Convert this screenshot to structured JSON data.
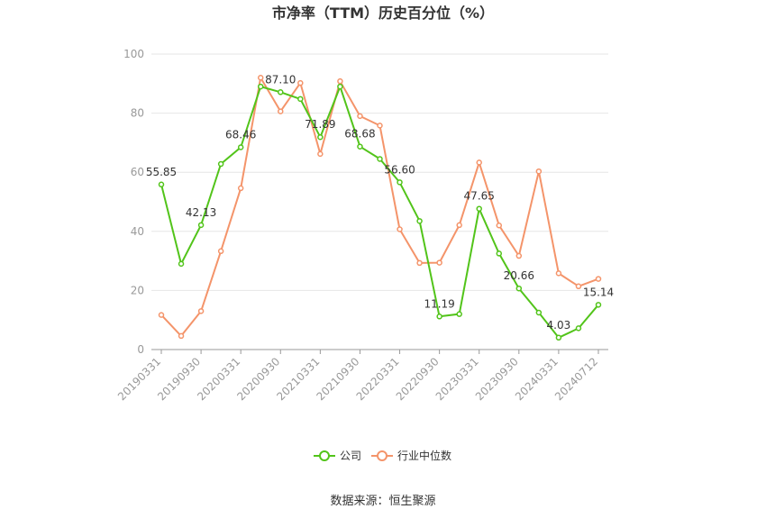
{
  "chart_data": {
    "type": "line",
    "title": "市净率（TTM）历史百分位（%）",
    "ylim": [
      0,
      100
    ],
    "yticks": [
      0,
      20,
      40,
      60,
      80,
      100
    ],
    "x": [
      "20190331",
      "20190630",
      "20190930",
      "20191231",
      "20200331",
      "20200630",
      "20200930",
      "20201231",
      "20210331",
      "20210630",
      "20210930",
      "20211231",
      "20220331",
      "20220630",
      "20220930",
      "20221231",
      "20230331",
      "20230630",
      "20230930",
      "20231231",
      "20240331",
      "20240630",
      "20240712"
    ],
    "xtick_labels": [
      "20190331",
      "20190930",
      "20200331",
      "20200930",
      "20210331",
      "20210930",
      "20220331",
      "20220930",
      "20230331",
      "20230930",
      "20240331",
      "20240712"
    ],
    "series": [
      {
        "name": "公司",
        "color": "#52c41a",
        "values": [
          55.85,
          29.0,
          42.13,
          62.8,
          68.46,
          89.0,
          87.1,
          84.8,
          71.89,
          89.0,
          68.68,
          64.5,
          56.6,
          43.5,
          11.19,
          12.0,
          47.65,
          32.5,
          20.66,
          12.5,
          4.03,
          7.2,
          15.14
        ],
        "labels": [
          "55.85",
          "",
          "42.13",
          "",
          "68.46",
          "",
          "87.10",
          "",
          "71.89",
          "",
          "68.68",
          "",
          "56.60",
          "",
          "11.19",
          "",
          "47.65",
          "",
          "20.66",
          "",
          "4.03",
          "",
          "15.14"
        ]
      },
      {
        "name": "行业中位数",
        "color": "#f4946a",
        "values": [
          11.7,
          4.6,
          13.0,
          33.3,
          54.6,
          92.0,
          80.6,
          90.2,
          66.2,
          90.8,
          79.0,
          75.8,
          40.7,
          29.3,
          29.4,
          42.1,
          63.3,
          42.0,
          31.7,
          60.3,
          25.8,
          21.4,
          23.9
        ]
      }
    ],
    "legend_position": "bottom",
    "grid": true,
    "source": "数据来源：恒生聚源"
  }
}
